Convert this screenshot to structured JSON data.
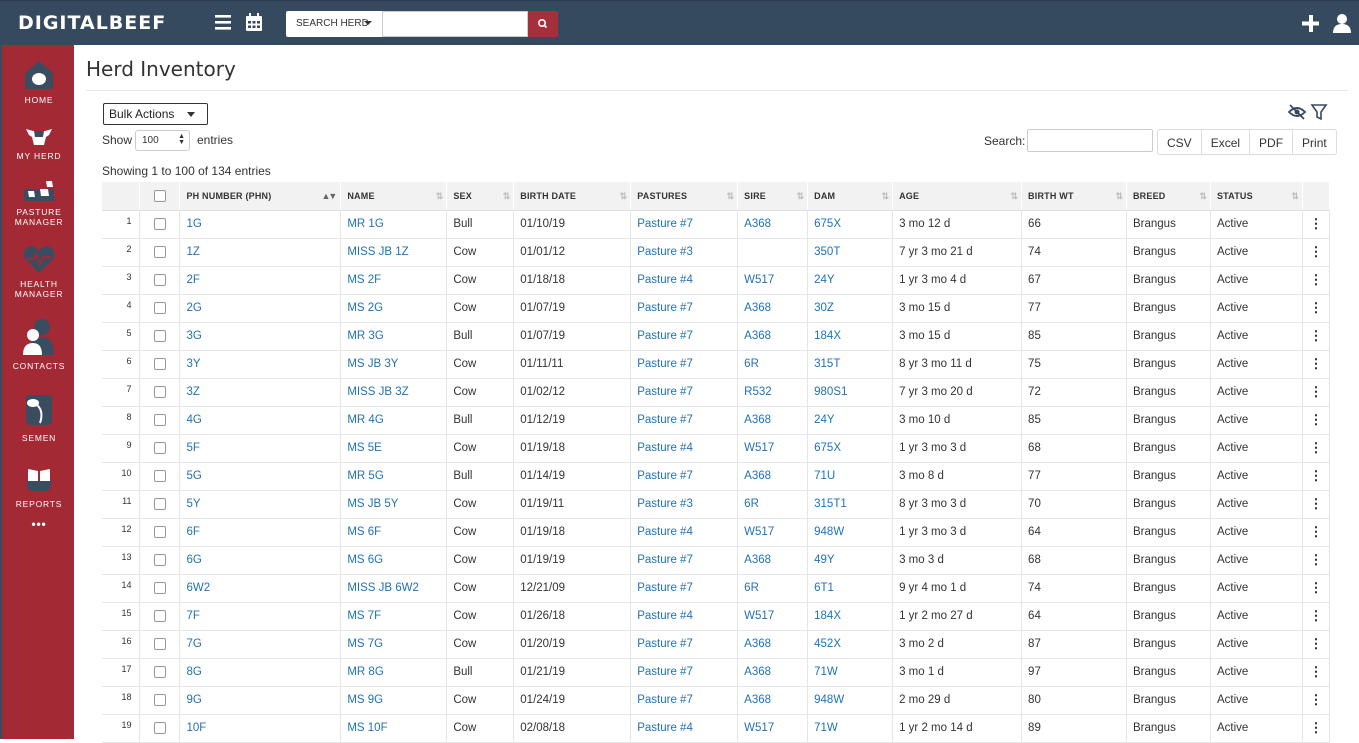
{
  "app": {
    "logo": "DIGITALBEEF",
    "search_select": "SEARCH HERD",
    "search_placeholder": ""
  },
  "sidebar": {
    "items": [
      {
        "label": "HOME",
        "icon": "home-icon"
      },
      {
        "label": "MY HERD",
        "icon": "cow-icon"
      },
      {
        "label": "PASTURE MANAGER",
        "icon": "pasture-icon"
      },
      {
        "label": "HEALTH MANAGER",
        "icon": "health-icon"
      },
      {
        "label": "CONTACTS",
        "icon": "contacts-icon"
      },
      {
        "label": "SEMEN",
        "icon": "semen-icon"
      },
      {
        "label": "REPORTS",
        "icon": "reports-icon"
      }
    ],
    "more": "•••"
  },
  "page": {
    "title": "Herd Inventory",
    "bulk_actions": "Bulk Actions",
    "show_label": "Show",
    "show_value": "100",
    "entries_label": "entries",
    "info": "Showing 1 to 100 of 134 entries",
    "search_label": "Search:",
    "export": [
      "CSV",
      "Excel",
      "PDF",
      "Print"
    ]
  },
  "table": {
    "headers": [
      "PH NUMBER (PHN)",
      "NAME",
      "SEX",
      "BIRTH DATE",
      "PASTURES",
      "SIRE",
      "DAM",
      "AGE",
      "BIRTH WT",
      "BREED",
      "STATUS"
    ],
    "rows": [
      {
        "n": "1",
        "phn": "1G",
        "name": "MR 1G",
        "sex": "Bull",
        "bd": "01/10/19",
        "pasture": "Pasture #7",
        "sire": "A368",
        "dam": "675X",
        "age": "3 mo 12 d",
        "wt": "66",
        "breed": "Brangus",
        "status": "Active"
      },
      {
        "n": "2",
        "phn": "1Z",
        "name": "MISS JB 1Z",
        "sex": "Cow",
        "bd": "01/01/12",
        "pasture": "Pasture #3",
        "sire": "",
        "dam": "350T",
        "age": "7 yr 3 mo 21 d",
        "wt": "74",
        "breed": "Brangus",
        "status": "Active"
      },
      {
        "n": "3",
        "phn": "2F",
        "name": "MS 2F",
        "sex": "Cow",
        "bd": "01/18/18",
        "pasture": "Pasture #4",
        "sire": "W517",
        "dam": "24Y",
        "age": "1 yr 3 mo 4 d",
        "wt": "67",
        "breed": "Brangus",
        "status": "Active"
      },
      {
        "n": "4",
        "phn": "2G",
        "name": "MS 2G",
        "sex": "Cow",
        "bd": "01/07/19",
        "pasture": "Pasture #7",
        "sire": "A368",
        "dam": "30Z",
        "age": "3 mo 15 d",
        "wt": "77",
        "breed": "Brangus",
        "status": "Active"
      },
      {
        "n": "5",
        "phn": "3G",
        "name": "MR 3G",
        "sex": "Bull",
        "bd": "01/07/19",
        "pasture": "Pasture #7",
        "sire": "A368",
        "dam": "184X",
        "age": "3 mo 15 d",
        "wt": "85",
        "breed": "Brangus",
        "status": "Active"
      },
      {
        "n": "6",
        "phn": "3Y",
        "name": "MS JB 3Y",
        "sex": "Cow",
        "bd": "01/11/11",
        "pasture": "Pasture #7",
        "sire": "6R",
        "dam": "315T",
        "age": "8 yr 3 mo 11 d",
        "wt": "75",
        "breed": "Brangus",
        "status": "Active"
      },
      {
        "n": "7",
        "phn": "3Z",
        "name": "MISS JB 3Z",
        "sex": "Cow",
        "bd": "01/02/12",
        "pasture": "Pasture #7",
        "sire": "R532",
        "dam": "980S1",
        "age": "7 yr 3 mo 20 d",
        "wt": "72",
        "breed": "Brangus",
        "status": "Active"
      },
      {
        "n": "8",
        "phn": "4G",
        "name": "MR 4G",
        "sex": "Bull",
        "bd": "01/12/19",
        "pasture": "Pasture #7",
        "sire": "A368",
        "dam": "24Y",
        "age": "3 mo 10 d",
        "wt": "85",
        "breed": "Brangus",
        "status": "Active"
      },
      {
        "n": "9",
        "phn": "5F",
        "name": "MS 5E",
        "sex": "Cow",
        "bd": "01/19/18",
        "pasture": "Pasture #4",
        "sire": "W517",
        "dam": "675X",
        "age": "1 yr 3 mo 3 d",
        "wt": "68",
        "breed": "Brangus",
        "status": "Active"
      },
      {
        "n": "10",
        "phn": "5G",
        "name": "MR 5G",
        "sex": "Bull",
        "bd": "01/14/19",
        "pasture": "Pasture #7",
        "sire": "A368",
        "dam": "71U",
        "age": "3 mo 8 d",
        "wt": "77",
        "breed": "Brangus",
        "status": "Active"
      },
      {
        "n": "11",
        "phn": "5Y",
        "name": "MS JB 5Y",
        "sex": "Cow",
        "bd": "01/19/11",
        "pasture": "Pasture #3",
        "sire": "6R",
        "dam": "315T1",
        "age": "8 yr 3 mo 3 d",
        "wt": "70",
        "breed": "Brangus",
        "status": "Active"
      },
      {
        "n": "12",
        "phn": "6F",
        "name": "MS 6F",
        "sex": "Cow",
        "bd": "01/19/18",
        "pasture": "Pasture #4",
        "sire": "W517",
        "dam": "948W",
        "age": "1 yr 3 mo 3 d",
        "wt": "64",
        "breed": "Brangus",
        "status": "Active"
      },
      {
        "n": "13",
        "phn": "6G",
        "name": "MS 6G",
        "sex": "Cow",
        "bd": "01/19/19",
        "pasture": "Pasture #7",
        "sire": "A368",
        "dam": "49Y",
        "age": "3 mo 3 d",
        "wt": "68",
        "breed": "Brangus",
        "status": "Active"
      },
      {
        "n": "14",
        "phn": "6W2",
        "name": "MISS JB 6W2",
        "sex": "Cow",
        "bd": "12/21/09",
        "pasture": "Pasture #7",
        "sire": "6R",
        "dam": "6T1",
        "age": "9 yr 4 mo 1 d",
        "wt": "74",
        "breed": "Brangus",
        "status": "Active"
      },
      {
        "n": "15",
        "phn": "7F",
        "name": "MS 7F",
        "sex": "Cow",
        "bd": "01/26/18",
        "pasture": "Pasture #4",
        "sire": "W517",
        "dam": "184X",
        "age": "1 yr 2 mo 27 d",
        "wt": "64",
        "breed": "Brangus",
        "status": "Active"
      },
      {
        "n": "16",
        "phn": "7G",
        "name": "MS 7G",
        "sex": "Cow",
        "bd": "01/20/19",
        "pasture": "Pasture #7",
        "sire": "A368",
        "dam": "452X",
        "age": "3 mo 2 d",
        "wt": "87",
        "breed": "Brangus",
        "status": "Active"
      },
      {
        "n": "17",
        "phn": "8G",
        "name": "MR 8G",
        "sex": "Bull",
        "bd": "01/21/19",
        "pasture": "Pasture #7",
        "sire": "A368",
        "dam": "71W",
        "age": "3 mo 1 d",
        "wt": "97",
        "breed": "Brangus",
        "status": "Active"
      },
      {
        "n": "18",
        "phn": "9G",
        "name": "MS 9G",
        "sex": "Cow",
        "bd": "01/24/19",
        "pasture": "Pasture #7",
        "sire": "A368",
        "dam": "948W",
        "age": "2 mo 29 d",
        "wt": "80",
        "breed": "Brangus",
        "status": "Active"
      },
      {
        "n": "19",
        "phn": "10F",
        "name": "MS 10F",
        "sex": "Cow",
        "bd": "02/08/18",
        "pasture": "Pasture #4",
        "sire": "W517",
        "dam": "71W",
        "age": "1 yr 2 mo 14 d",
        "wt": "89",
        "breed": "Brangus",
        "status": "Active"
      }
    ]
  },
  "colors": {
    "topbar": "#354a5f",
    "sidebar": "#a32a35",
    "link": "#1f72b5",
    "accent": "#a4303b"
  }
}
